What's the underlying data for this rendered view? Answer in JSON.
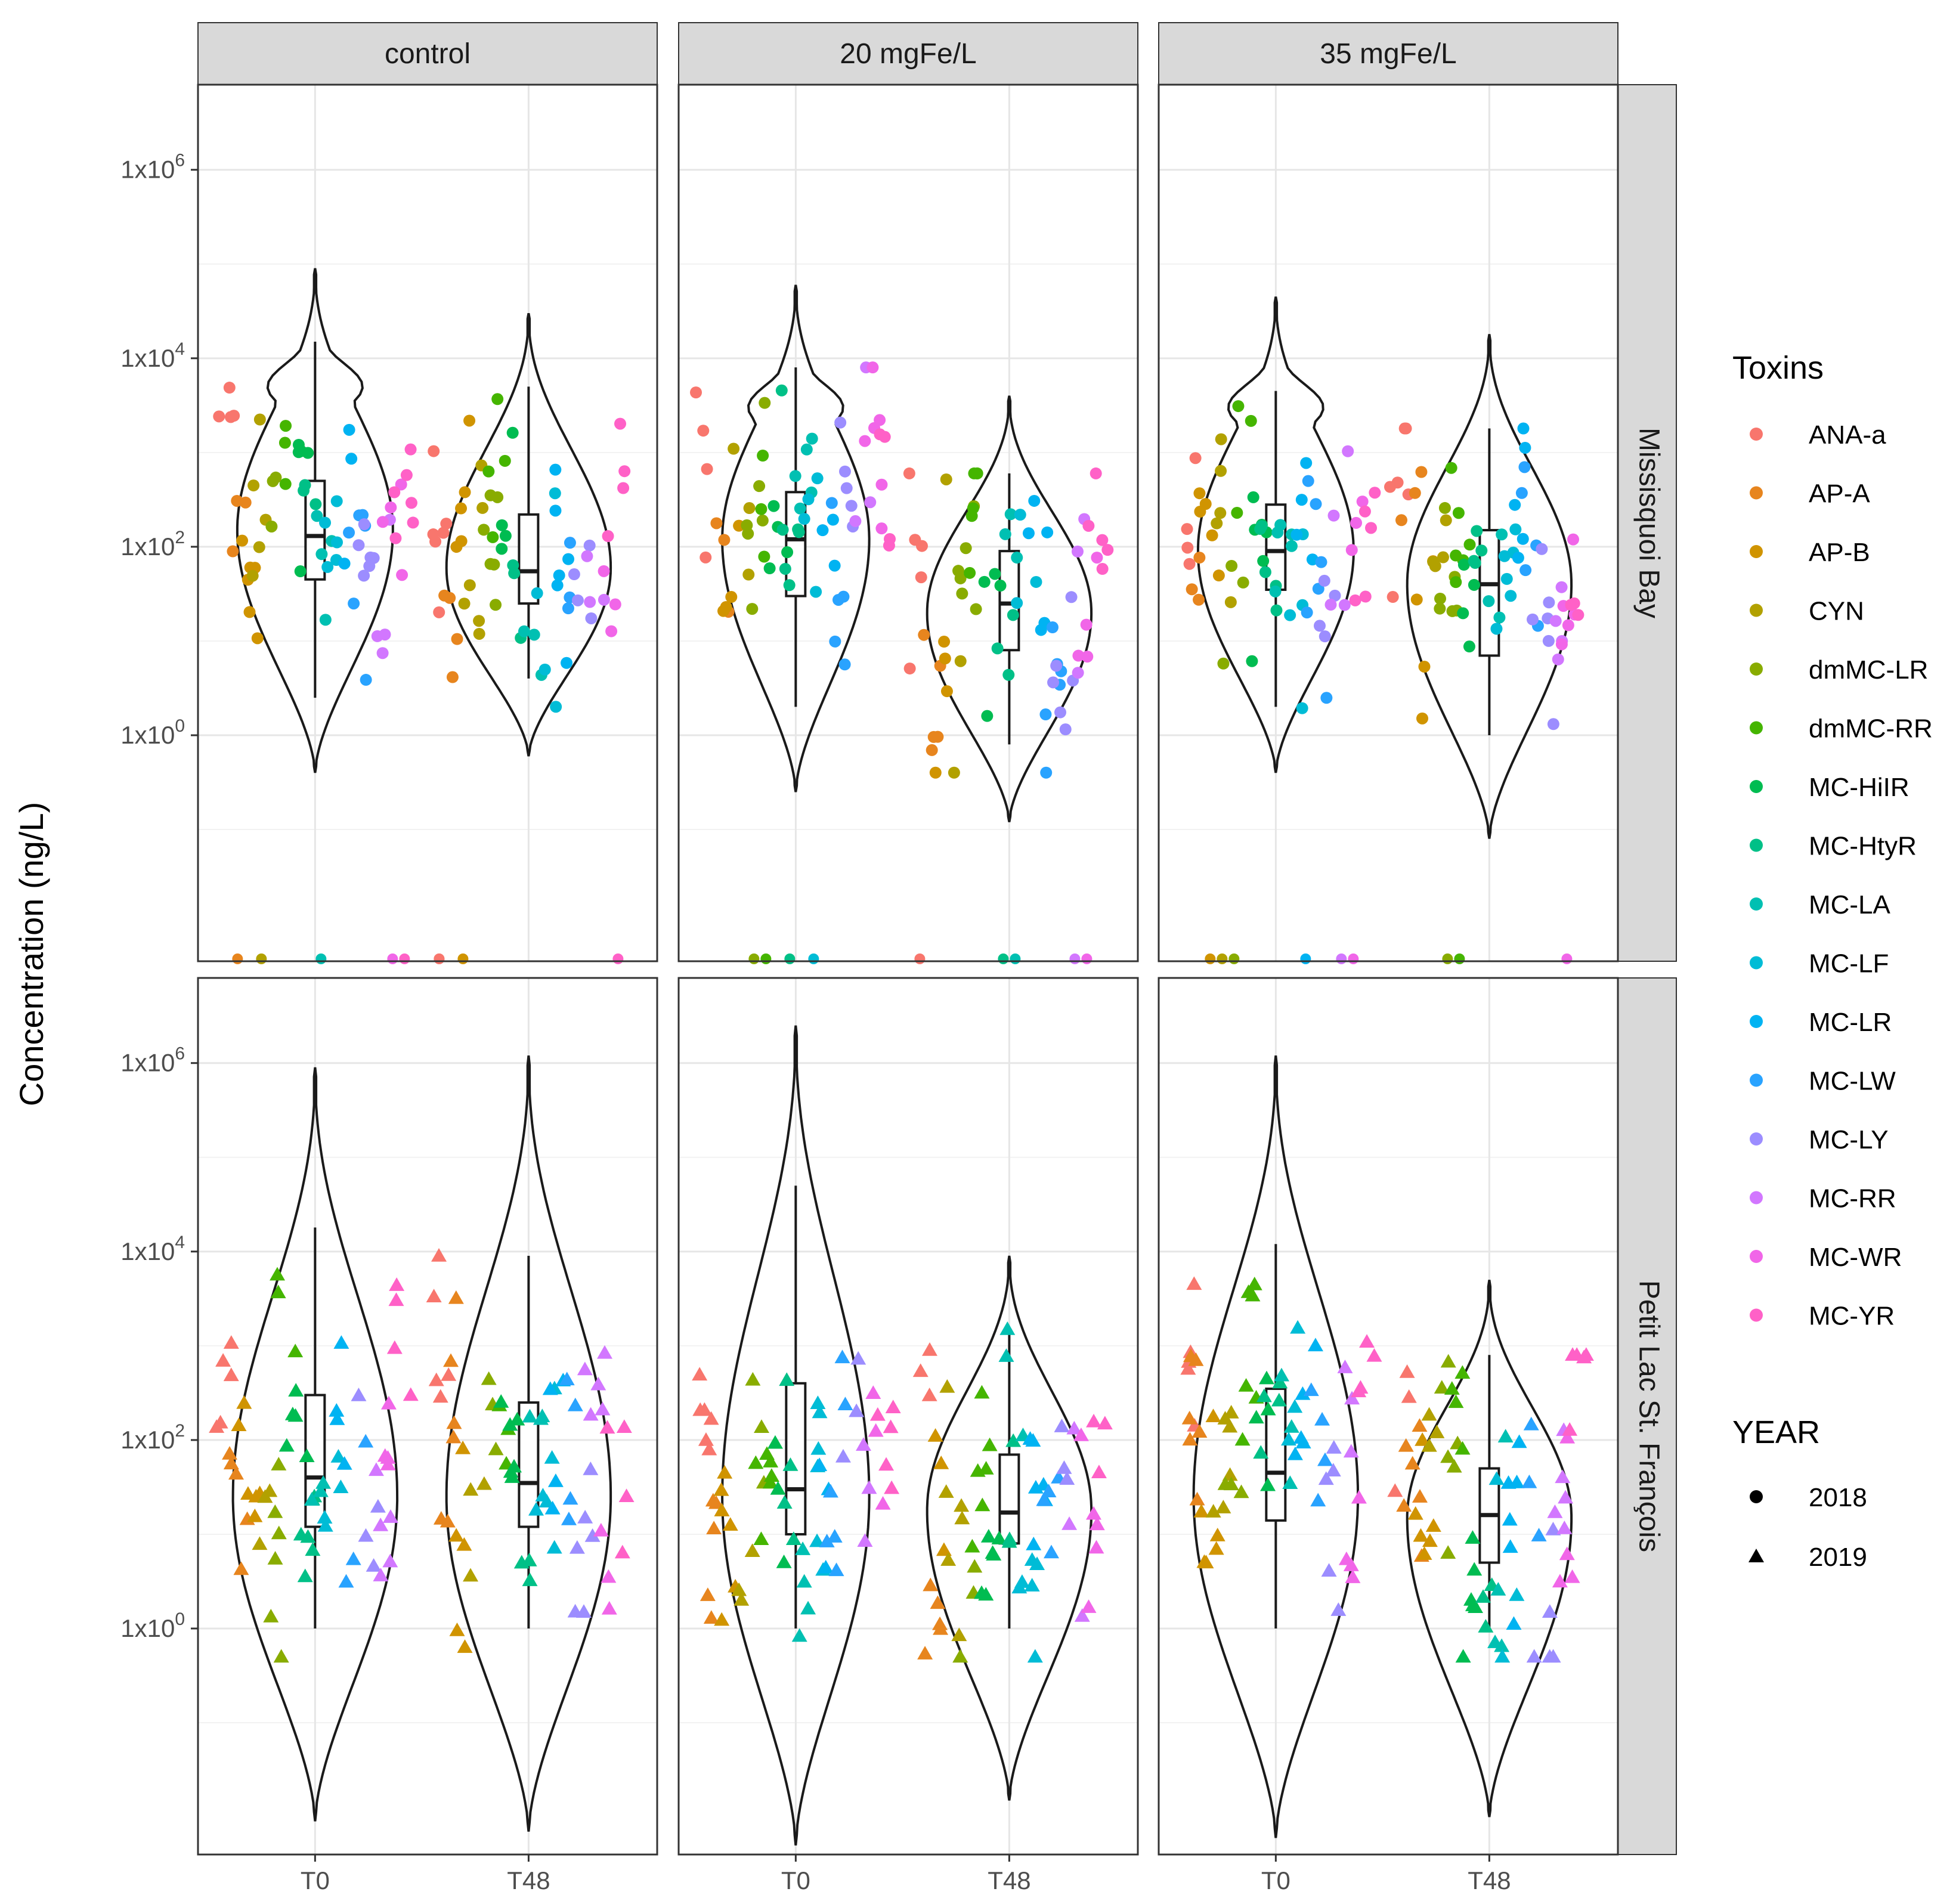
{
  "chart_data": {
    "type": "violin",
    "ylabel": "Concentration (ng/L)",
    "y_scale": "log10",
    "ylim": [
      0.004,
      8000000
    ],
    "y_ticks": [
      {
        "value": 1,
        "label_base": "1x10",
        "label_exp": "0"
      },
      {
        "value": 100,
        "label_base": "1x10",
        "label_exp": "2"
      },
      {
        "value": 10000,
        "label_base": "1x10",
        "label_exp": "4"
      },
      {
        "value": 1000000,
        "label_base": "1x10",
        "label_exp": "6"
      }
    ],
    "columns": [
      "control",
      "20 mgFe/L",
      "35 mgFe/L"
    ],
    "rows": [
      "Missisquoi Bay",
      "Petit Lac St. François"
    ],
    "x_categories": [
      "T0",
      "T48"
    ],
    "legend_toxins": {
      "title": "Toxins",
      "items": [
        {
          "name": "ANA-a",
          "color": "#F8766D"
        },
        {
          "name": "AP-A",
          "color": "#E7851E"
        },
        {
          "name": "AP-B",
          "color": "#D09400"
        },
        {
          "name": "CYN",
          "color": "#B2A100"
        },
        {
          "name": "dmMC-LR",
          "color": "#89AC00"
        },
        {
          "name": "dmMC-RR",
          "color": "#45B500"
        },
        {
          "name": "MC-HiIR",
          "color": "#00BC51"
        },
        {
          "name": "MC-HtyR",
          "color": "#00C087"
        },
        {
          "name": "MC-LA",
          "color": "#00C0B2"
        },
        {
          "name": "MC-LF",
          "color": "#00BCD6"
        },
        {
          "name": "MC-LR",
          "color": "#00B3F2"
        },
        {
          "name": "MC-LW",
          "color": "#29A3FF"
        },
        {
          "name": "MC-LY",
          "color": "#9C8DFF"
        },
        {
          "name": "MC-RR",
          "color": "#D277FF"
        },
        {
          "name": "MC-WR",
          "color": "#F166E8"
        },
        {
          "name": "MC-YR",
          "color": "#FF61C7"
        }
      ]
    },
    "legend_year": {
      "title": "YEAR",
      "items": [
        {
          "name": "2018",
          "shape": "circle"
        },
        {
          "name": "2019",
          "shape": "triangle"
        }
      ]
    },
    "panels": [
      {
        "row": 0,
        "col": 0,
        "groups": [
          {
            "x": "T0",
            "violin": {
              "min": 0.4,
              "max": 90000,
              "mode": 150,
              "mode_width": 0.9,
              "secondary": {
                "at": 5000,
                "width": 0.55
              }
            },
            "box": {
              "q1": 45,
              "median": 130,
              "q3": 500,
              "lo": 2.5,
              "hi": 15000
            },
            "year": "2018"
          },
          {
            "x": "T48",
            "violin": {
              "min": 0.6,
              "max": 30000,
              "mode": 60,
              "mode_width": 0.95
            },
            "box": {
              "q1": 25,
              "median": 55,
              "q3": 220,
              "lo": 4,
              "hi": 5000
            },
            "year": "2018"
          }
        ]
      },
      {
        "row": 0,
        "col": 1,
        "groups": [
          {
            "x": "T0",
            "violin": {
              "min": 0.25,
              "max": 60000,
              "mode": 120,
              "mode_width": 0.85,
              "secondary": {
                "at": 3000,
                "width": 0.55
              }
            },
            "box": {
              "q1": 30,
              "median": 120,
              "q3": 380,
              "lo": 2,
              "hi": 8000
            },
            "year": "2018"
          },
          {
            "x": "T48",
            "violin": {
              "min": 0.12,
              "max": 4000,
              "mode": 20,
              "mode_width": 0.95
            },
            "box": {
              "q1": 8,
              "median": 25,
              "q3": 90,
              "lo": 0.8,
              "hi": 600
            },
            "year": "2018"
          }
        ]
      },
      {
        "row": 0,
        "col": 2,
        "groups": [
          {
            "x": "T0",
            "violin": {
              "min": 0.4,
              "max": 45000,
              "mode": 90,
              "mode_width": 0.9,
              "secondary": {
                "at": 3000,
                "width": 0.55
              }
            },
            "box": {
              "q1": 35,
              "median": 90,
              "q3": 280,
              "lo": 2,
              "hi": 4500
            },
            "year": "2018"
          },
          {
            "x": "T48",
            "violin": {
              "min": 0.08,
              "max": 18000,
              "mode": 40,
              "mode_width": 0.95
            },
            "box": {
              "q1": 7,
              "median": 40,
              "q3": 150,
              "lo": 1,
              "hi": 1800
            },
            "year": "2018"
          }
        ]
      },
      {
        "row": 1,
        "col": 0,
        "groups": [
          {
            "x": "T0",
            "violin": {
              "min": 0.009,
              "max": 900000,
              "mode": 25,
              "mode_width": 0.95
            },
            "box": {
              "q1": 12,
              "median": 40,
              "q3": 300,
              "lo": 1,
              "hi": 18000
            },
            "year": "2019"
          },
          {
            "x": "T48",
            "violin": {
              "min": 0.007,
              "max": 1200000,
              "mode": 25,
              "mode_width": 0.95
            },
            "box": {
              "q1": 12,
              "median": 35,
              "q3": 250,
              "lo": 1,
              "hi": 9000
            },
            "year": "2019"
          }
        ]
      },
      {
        "row": 1,
        "col": 1,
        "groups": [
          {
            "x": "T0",
            "violin": {
              "min": 0.005,
              "max": 2500000,
              "mode": 25,
              "mode_width": 0.85
            },
            "box": {
              "q1": 10,
              "median": 30,
              "q3": 400,
              "lo": 1,
              "hi": 50000
            },
            "year": "2019"
          },
          {
            "x": "T48",
            "violin": {
              "min": 0.015,
              "max": 9000,
              "mode": 18,
              "mode_width": 0.95
            },
            "box": {
              "q1": 8,
              "median": 17,
              "q3": 70,
              "lo": 1,
              "hi": 1500
            },
            "year": "2019"
          }
        ]
      },
      {
        "row": 1,
        "col": 2,
        "groups": [
          {
            "x": "T0",
            "violin": {
              "min": 0.006,
              "max": 1200000,
              "mode": 25,
              "mode_width": 0.95
            },
            "box": {
              "q1": 14,
              "median": 45,
              "q3": 350,
              "lo": 1,
              "hi": 12000
            },
            "year": "2019"
          },
          {
            "x": "T48",
            "violin": {
              "min": 0.01,
              "max": 5000,
              "mode": 15,
              "mode_width": 0.95
            },
            "box": {
              "q1": 5,
              "median": 16,
              "q3": 50,
              "lo": 1,
              "hi": 800
            },
            "year": "2019"
          }
        ]
      }
    ]
  }
}
